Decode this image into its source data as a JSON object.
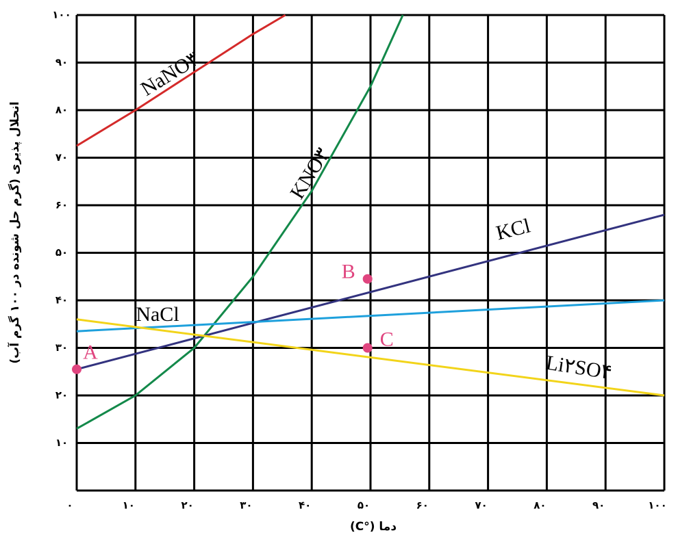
{
  "chart_data": {
    "type": "line",
    "x_label": "دما (°C)",
    "y_label": "انحلال پذیری (گرم حل شونده در ۱۰۰ گرم آب)",
    "xlim": [
      0,
      100
    ],
    "ylim": [
      0,
      100
    ],
    "xticks": [
      {
        "value": 0,
        "label": "۰"
      },
      {
        "value": 10,
        "label": "۱۰"
      },
      {
        "value": 20,
        "label": "۲۰"
      },
      {
        "value": 30,
        "label": "۳۰"
      },
      {
        "value": 40,
        "label": "۴۰"
      },
      {
        "value": 50,
        "label": "۵۰"
      },
      {
        "value": 60,
        "label": "۶۰"
      },
      {
        "value": 70,
        "label": "۷۰"
      },
      {
        "value": 80,
        "label": "۸۰"
      },
      {
        "value": 90,
        "label": "۹۰"
      },
      {
        "value": 100,
        "label": "۱۰۰"
      }
    ],
    "yticks": [
      {
        "value": 10,
        "label": "۱۰"
      },
      {
        "value": 20,
        "label": "۲۰"
      },
      {
        "value": 30,
        "label": "۳۰"
      },
      {
        "value": 40,
        "label": "۴۰"
      },
      {
        "value": 50,
        "label": "۵۰"
      },
      {
        "value": 60,
        "label": "۶۰"
      },
      {
        "value": 70,
        "label": "۷۰"
      },
      {
        "value": 80,
        "label": "۸۰"
      },
      {
        "value": 90,
        "label": "۹۰"
      },
      {
        "value": 100,
        "label": "۱۰۰"
      }
    ],
    "grid": true,
    "series": [
      {
        "name": "NaNO۳",
        "color": "#d42a2a",
        "x": [
          0,
          10,
          20,
          30,
          35.5
        ],
        "values": [
          72.5,
          80,
          88,
          96,
          100
        ]
      },
      {
        "name": "KNO۳",
        "color": "#13894a",
        "x": [
          0,
          10,
          20,
          30,
          40,
          50,
          55.5
        ],
        "values": [
          13,
          20,
          30,
          45,
          63,
          85,
          100
        ]
      },
      {
        "name": "KCl",
        "color": "#33337f",
        "x": [
          0,
          100
        ],
        "values": [
          25.5,
          58
        ]
      },
      {
        "name": "NaCl",
        "color": "#1ea0dc",
        "x": [
          0,
          100
        ],
        "values": [
          33.5,
          40
        ]
      },
      {
        "name": "Li۲SO۴",
        "color": "#f2d41a",
        "x": [
          0,
          100
        ],
        "values": [
          36,
          20
        ]
      }
    ],
    "points": [
      {
        "label": "A",
        "x": 0,
        "y": 25.5
      },
      {
        "label": "B",
        "x": 49.5,
        "y": 44.5
      },
      {
        "label": "C",
        "x": 49.5,
        "y": 30
      }
    ],
    "point_color": "#e0457f"
  }
}
